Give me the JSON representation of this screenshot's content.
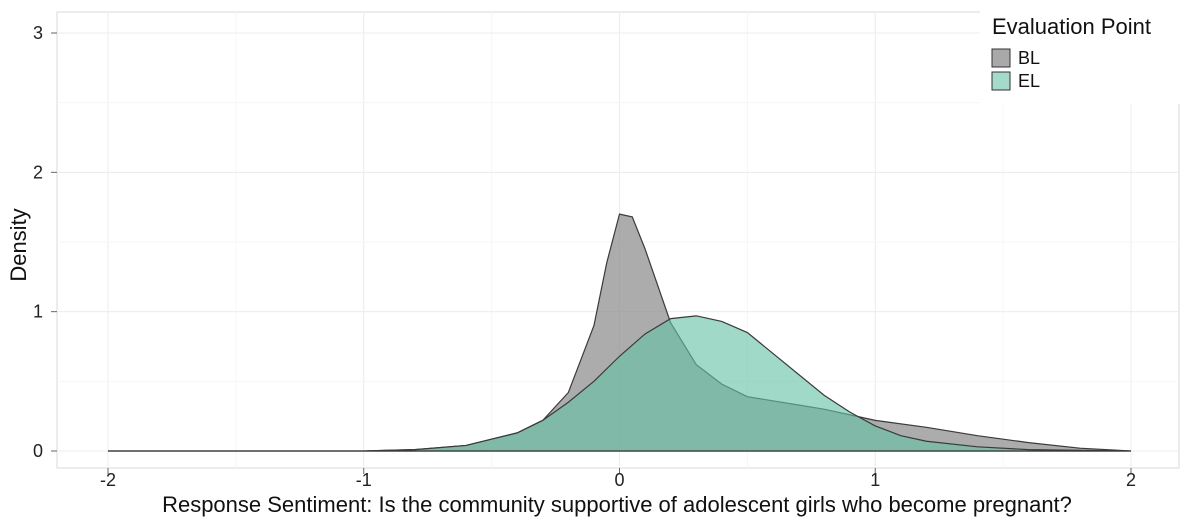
{
  "chart_data": {
    "type": "area",
    "title": "",
    "xlabel": "Response Sentiment: Is the community supportive of adolescent girls who become pregnant?",
    "ylabel": "Density",
    "xlim": [
      -2,
      2
    ],
    "ylim": [
      0,
      3
    ],
    "x_ticks": [
      "-2",
      "-1",
      "0",
      "1",
      "2"
    ],
    "y_ticks": [
      "0",
      "1",
      "2",
      "3"
    ],
    "grid": true,
    "legend": {
      "title": "Evaluation Point",
      "position": "top-right"
    },
    "series": [
      {
        "name": "BL",
        "color": "#8c8c8c",
        "points": [
          [
            -2,
            0
          ],
          [
            -1,
            0
          ],
          [
            -0.8,
            0.01
          ],
          [
            -0.6,
            0.04
          ],
          [
            -0.4,
            0.13
          ],
          [
            -0.3,
            0.22
          ],
          [
            -0.2,
            0.42
          ],
          [
            -0.1,
            0.9
          ],
          [
            -0.05,
            1.35
          ],
          [
            0,
            1.7
          ],
          [
            0.05,
            1.68
          ],
          [
            0.1,
            1.45
          ],
          [
            0.2,
            0.92
          ],
          [
            0.3,
            0.62
          ],
          [
            0.4,
            0.48
          ],
          [
            0.5,
            0.39
          ],
          [
            0.6,
            0.36
          ],
          [
            0.7,
            0.33
          ],
          [
            0.8,
            0.3
          ],
          [
            0.9,
            0.26
          ],
          [
            1.0,
            0.22
          ],
          [
            1.2,
            0.17
          ],
          [
            1.4,
            0.11
          ],
          [
            1.6,
            0.06
          ],
          [
            1.8,
            0.02
          ],
          [
            2.0,
            0
          ]
        ]
      },
      {
        "name": "EL",
        "color": "#66c2a5",
        "points": [
          [
            -2,
            0
          ],
          [
            -1,
            0
          ],
          [
            -0.8,
            0.01
          ],
          [
            -0.6,
            0.04
          ],
          [
            -0.4,
            0.13
          ],
          [
            -0.3,
            0.22
          ],
          [
            -0.2,
            0.35
          ],
          [
            -0.1,
            0.5
          ],
          [
            0,
            0.68
          ],
          [
            0.1,
            0.84
          ],
          [
            0.2,
            0.95
          ],
          [
            0.3,
            0.97
          ],
          [
            0.4,
            0.93
          ],
          [
            0.5,
            0.85
          ],
          [
            0.6,
            0.7
          ],
          [
            0.7,
            0.55
          ],
          [
            0.8,
            0.4
          ],
          [
            0.9,
            0.28
          ],
          [
            1.0,
            0.18
          ],
          [
            1.1,
            0.11
          ],
          [
            1.2,
            0.07
          ],
          [
            1.4,
            0.03
          ],
          [
            1.6,
            0.01
          ],
          [
            1.8,
            0.005
          ],
          [
            2.0,
            0
          ]
        ]
      }
    ]
  }
}
